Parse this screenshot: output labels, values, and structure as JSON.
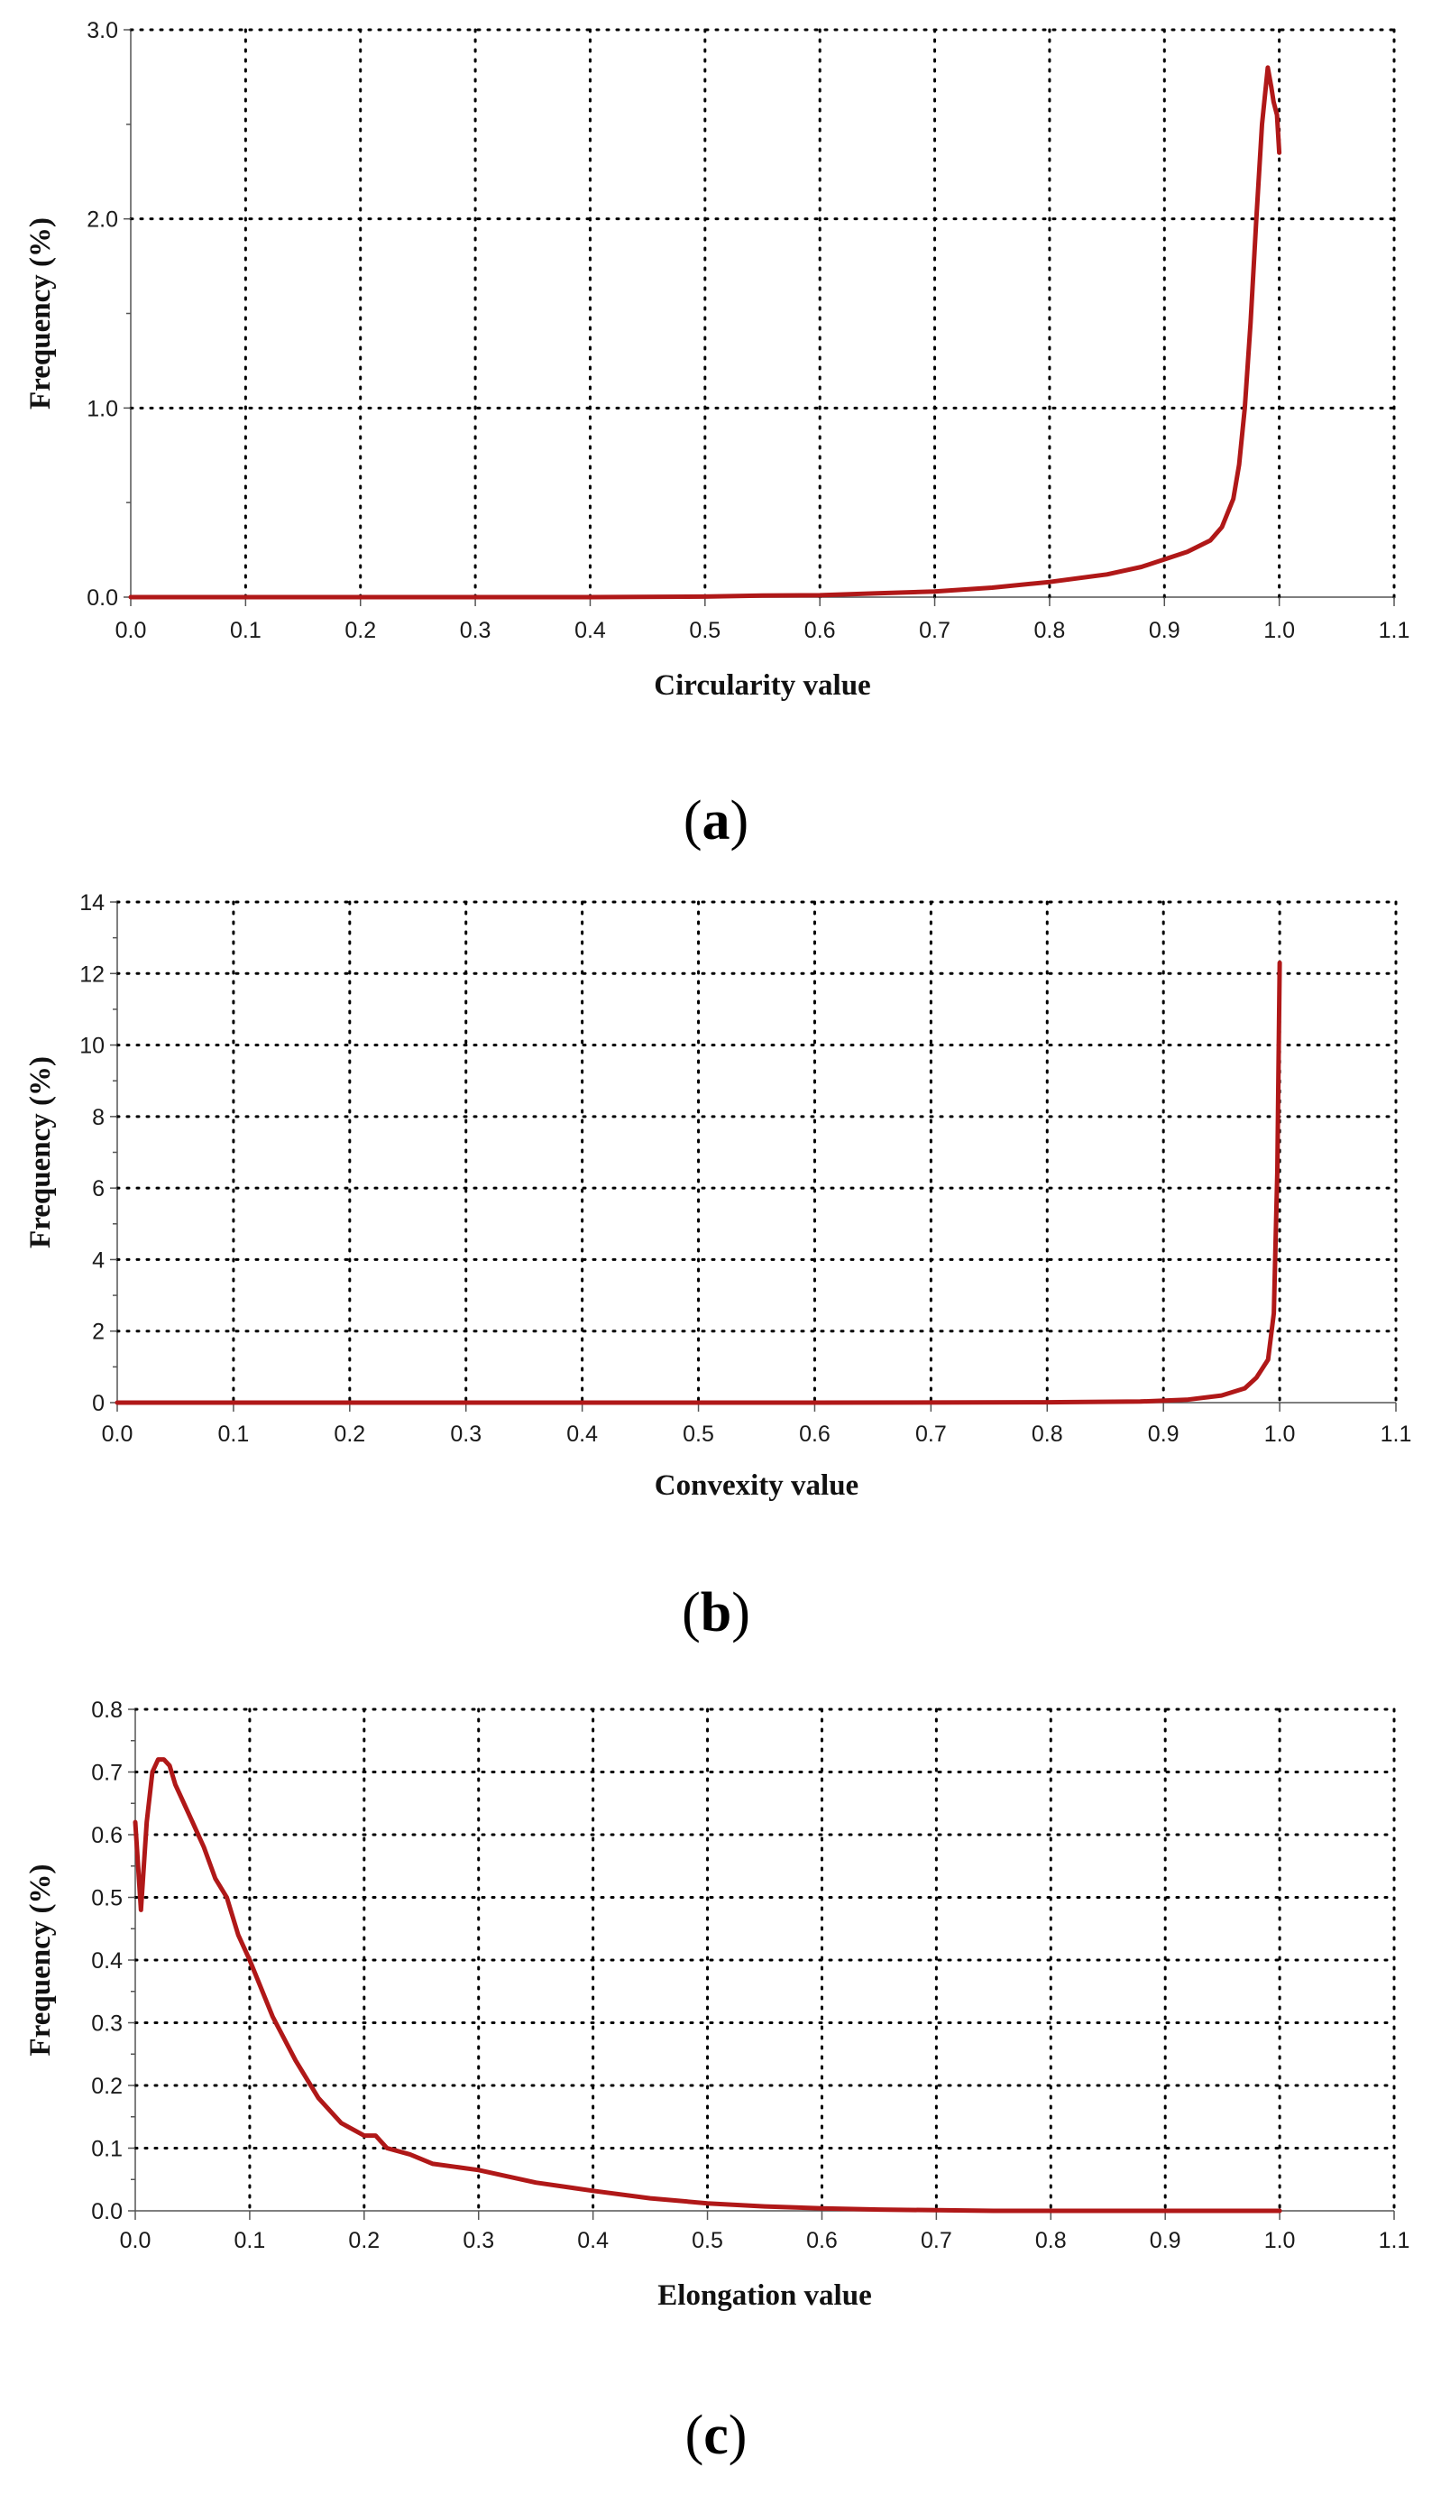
{
  "colors": {
    "series": "#b01818",
    "background": "#ffffff"
  },
  "chart_data": [
    {
      "type": "line",
      "panel_label": "a",
      "xlabel": "Circularity value",
      "ylabel": "Frequency (%)",
      "xlim": [
        0,
        1.1
      ],
      "ylim": [
        0,
        3
      ],
      "xticks": [
        "0.0",
        "0.1",
        "0.2",
        "0.3",
        "0.4",
        "0.5",
        "0.6",
        "0.7",
        "0.8",
        "0.9",
        "1.0",
        "1.1"
      ],
      "yticks": [
        "0.0",
        "1.0",
        "2.0",
        "3.0"
      ],
      "grid": true,
      "series": [
        {
          "x": [
            0,
            0.1,
            0.2,
            0.3,
            0.4,
            0.5,
            0.55,
            0.6,
            0.65,
            0.7,
            0.75,
            0.8,
            0.85,
            0.88,
            0.9,
            0.92,
            0.94,
            0.95,
            0.96,
            0.965,
            0.97,
            0.975,
            0.98,
            0.985,
            0.99,
            0.993,
            0.995,
            0.998,
            1.0
          ],
          "y": [
            0,
            0,
            0,
            0,
            0,
            0.003,
            0.008,
            0.01,
            0.02,
            0.03,
            0.05,
            0.08,
            0.12,
            0.16,
            0.2,
            0.24,
            0.3,
            0.37,
            0.52,
            0.7,
            1.0,
            1.45,
            2.0,
            2.5,
            2.8,
            2.7,
            2.62,
            2.55,
            2.35
          ]
        }
      ]
    },
    {
      "type": "line",
      "panel_label": "b",
      "xlabel": "Convexity value",
      "ylabel": "Frequency (%)",
      "xlim": [
        0,
        1.1
      ],
      "ylim": [
        0,
        14
      ],
      "xticks": [
        "0.0",
        "0.1",
        "0.2",
        "0.3",
        "0.4",
        "0.5",
        "0.6",
        "0.7",
        "0.8",
        "0.9",
        "1.0",
        "1.1"
      ],
      "yticks": [
        "0",
        "2",
        "4",
        "6",
        "8",
        "10",
        "12",
        "14"
      ],
      "grid": true,
      "series": [
        {
          "x": [
            0,
            0.2,
            0.4,
            0.6,
            0.8,
            0.88,
            0.92,
            0.95,
            0.97,
            0.98,
            0.99,
            0.995,
            0.998,
            1.0
          ],
          "y": [
            0,
            0,
            0,
            0,
            0.01,
            0.03,
            0.08,
            0.2,
            0.4,
            0.7,
            1.2,
            2.5,
            6.5,
            12.3
          ]
        }
      ]
    },
    {
      "type": "line",
      "panel_label": "c",
      "xlabel": "Elongation value",
      "ylabel": "Frequency (%)",
      "xlim": [
        0,
        1.1
      ],
      "ylim": [
        0,
        0.8
      ],
      "xticks": [
        "0.0",
        "0.1",
        "0.2",
        "0.3",
        "0.4",
        "0.5",
        "0.6",
        "0.7",
        "0.8",
        "0.9",
        "1.0",
        "1.1"
      ],
      "yticks": [
        "0.0",
        "0.1",
        "0.2",
        "0.3",
        "0.4",
        "0.5",
        "0.6",
        "0.7",
        "0.8"
      ],
      "grid": true,
      "series": [
        {
          "x": [
            0,
            0.005,
            0.01,
            0.015,
            0.02,
            0.025,
            0.03,
            0.035,
            0.04,
            0.05,
            0.06,
            0.07,
            0.08,
            0.09,
            0.1,
            0.12,
            0.14,
            0.16,
            0.18,
            0.2,
            0.21,
            0.22,
            0.24,
            0.26,
            0.28,
            0.3,
            0.35,
            0.4,
            0.45,
            0.5,
            0.55,
            0.6,
            0.65,
            0.7,
            0.75,
            0.8,
            0.9,
            1.0
          ],
          "y": [
            0.62,
            0.48,
            0.62,
            0.7,
            0.72,
            0.72,
            0.71,
            0.68,
            0.66,
            0.62,
            0.58,
            0.53,
            0.5,
            0.44,
            0.4,
            0.31,
            0.24,
            0.18,
            0.14,
            0.12,
            0.12,
            0.1,
            0.09,
            0.075,
            0.07,
            0.065,
            0.045,
            0.032,
            0.02,
            0.012,
            0.007,
            0.004,
            0.002,
            0.001,
            0,
            0,
            0,
            0
          ]
        }
      ]
    }
  ]
}
